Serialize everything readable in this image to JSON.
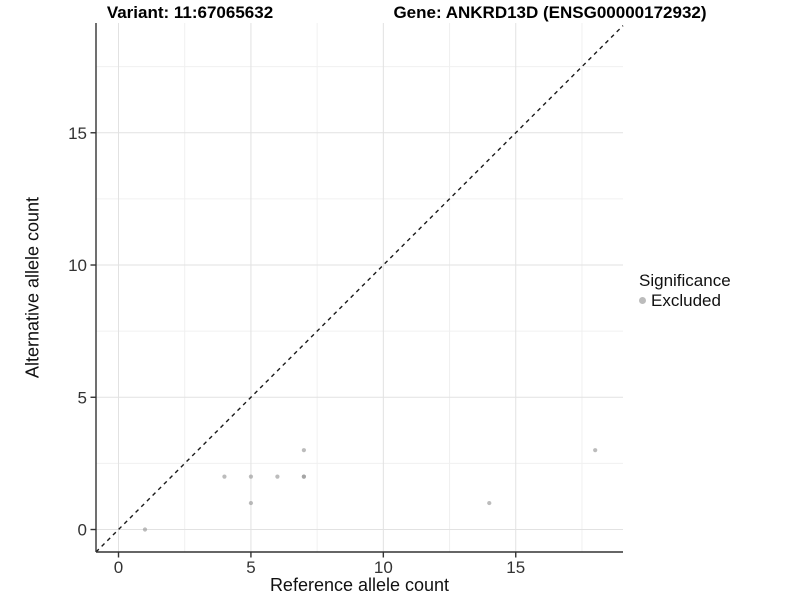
{
  "chart_data": {
    "type": "scatter",
    "title_left": "Variant: 11:67065632",
    "title_right": "Gene: ANKRD13D (ENSG00000172932)",
    "xlabel": "Reference allele count",
    "ylabel": "Alternative allele count",
    "xlim": [
      -0.85,
      19.05
    ],
    "ylim": [
      -0.85,
      19.15
    ],
    "x_ticks": [
      0,
      5,
      10,
      15
    ],
    "y_ticks": [
      0,
      5,
      10,
      15
    ],
    "x_minor_ticks": [
      2.5,
      7.5,
      12.5,
      17.5
    ],
    "y_minor_ticks": [
      2.5,
      7.5,
      12.5,
      17.5
    ],
    "grid": true,
    "legend_position": "right",
    "legend": {
      "title": "Significance",
      "items": [
        {
          "label": "Excluded",
          "color": "#bcbcbc"
        }
      ]
    },
    "series": [
      {
        "name": "Excluded",
        "point_fill": "#989898",
        "point_opacity": 0.65,
        "points": [
          [
            1,
            0
          ],
          [
            4,
            2
          ],
          [
            5,
            1
          ],
          [
            5,
            2
          ],
          [
            6,
            2
          ],
          [
            7,
            2
          ],
          [
            7,
            2
          ],
          [
            7,
            3
          ],
          [
            14,
            1
          ],
          [
            18,
            3
          ]
        ]
      }
    ],
    "reference_line": {
      "kind": "identity",
      "slope": 1,
      "intercept": 0,
      "style": "dashed",
      "color": "#1a1a1a"
    },
    "colors": {
      "major_grid": "#e2e2e2",
      "minor_grid": "#f0f0f0",
      "axis_line": "#333333",
      "tick_mark": "#333333",
      "tick_label": "#333333",
      "panel_background": "#ffffff"
    }
  }
}
